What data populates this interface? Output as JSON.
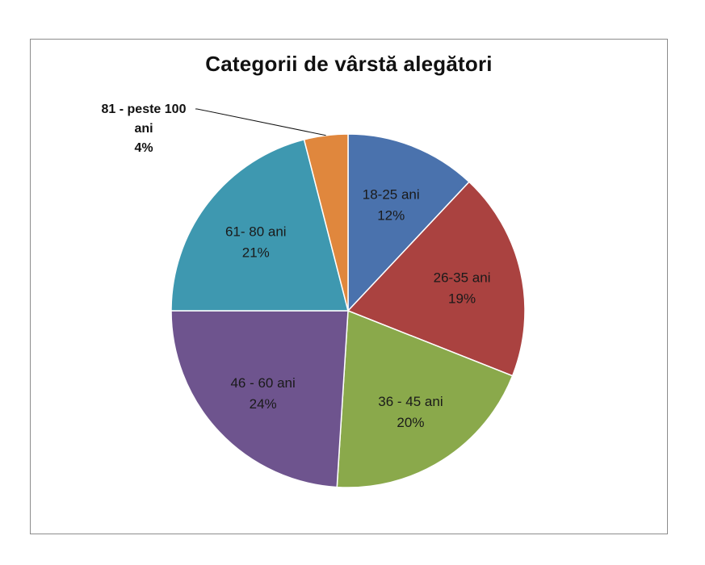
{
  "chart_data": {
    "type": "pie",
    "title": "Categorii de vârstă alegători",
    "slices": [
      {
        "label": "18-25 ani",
        "value": 12,
        "value_label": "12%",
        "color": "#4a72ad"
      },
      {
        "label": "26-35 ani",
        "value": 19,
        "value_label": "19%",
        "color": "#aa4240"
      },
      {
        "label": "36 - 45 ani",
        "value": 20,
        "value_label": "20%",
        "color": "#8aa94b"
      },
      {
        "label": "46 - 60 ani",
        "value": 24,
        "value_label": "24%",
        "color": "#6e548e"
      },
      {
        "label": "61- 80 ani",
        "value": 21,
        "value_label": "21%",
        "color": "#3e98b0"
      },
      {
        "label": "81 - peste 100 ani",
        "value": 4,
        "value_label": "4%",
        "color": "#e0873d"
      }
    ],
    "legend": "none",
    "start_angle": "12 o'clock, clockwise"
  }
}
